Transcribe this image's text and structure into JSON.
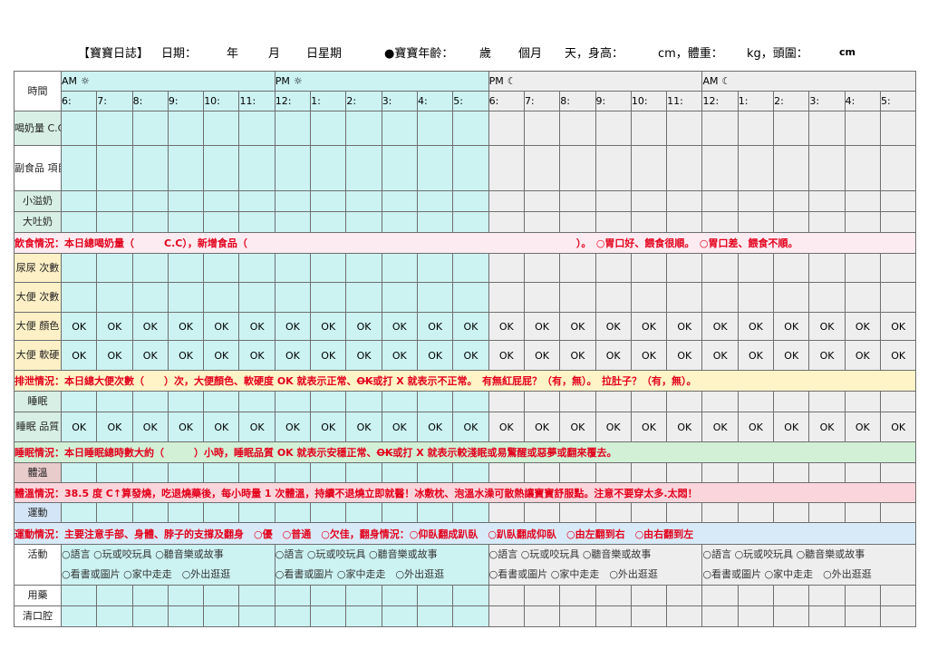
{
  "header": {
    "title": "【寶寶日誌】",
    "date_label": "日期：",
    "year": "年",
    "month": "月",
    "day_week": "日星期",
    "age_label": "●寶寶年齡：",
    "years": "歲",
    "months": "個月",
    "days_height": "天，身高：",
    "cm1": "cm，體重：",
    "kg": "kg，頭圍：",
    "cm2": "cm"
  },
  "time_label": "時間",
  "periods": [
    "AM",
    "PM",
    "PM",
    "AM"
  ],
  "hours": [
    "6:",
    "7:",
    "8:",
    "9:",
    "10:",
    "11:",
    "12:",
    "1:",
    "2:",
    "3:",
    "4:",
    "5:",
    "6:",
    "7:",
    "8:",
    "9:",
    "10:",
    "11:",
    "12:",
    "1:",
    "2:",
    "3:",
    "4:",
    "5:"
  ],
  "row_labels": {
    "milk": "喝奶量 C.C",
    "solid": "副食品 項目 C.C 量",
    "spit_small": "小溢奶",
    "spit_big": "大吐奶",
    "urine": "尿尿 次數",
    "stool_count": "大便 次數",
    "stool_color": "大便 顏色",
    "stool_soft": "大便 軟硬",
    "sleep": "睡眠",
    "sleep_quality": "睡眠 品質",
    "temp": "體溫",
    "exercise": "運動",
    "activity": "活動",
    "medicine": "用藥",
    "mouth": "清口腔"
  },
  "ok": "OK",
  "notes": {
    "diet": "飲食情況：本日總喝奶量（　　　C.C），新增食品（　　　　　　　　　　　　　　　　　　　　　　　　　　　　　　　　　）。　○胃口好、餵食很順。　○胃口差、餵食不順。",
    "stool_a": "排泄情況：本日總大便次數（　　）次，大便顏色、軟硬度 OK 就表示正常、",
    "stool_b": "OK",
    "stool_c": "或打 X 就表示不正常。　有無紅屁屁？（有，無）。　拉肚子？（有，無）。",
    "sleep_a": "睡眠情況：本日睡眠總時數大約（　　　）小時，睡眠品質 OK 就表示安穩正常、",
    "sleep_b": "OK",
    "sleep_c": "或打 X 就表示較淺眠或易驚醒或惡夢或翻來覆去。",
    "temp": "體溫情況：38.5 度 C↑算發燒，吃退燒藥後，每小時量 1 次體溫，持續不退燒立即就醫！冰敷枕、泡溫水澡可散熱讓寶寶舒服點。注意不要穿太多.太悶！",
    "exercise": "運動情況：主要注意手部、身體、脖子的支撐及翻身　○優　○普通　○欠佳，翻身情況：○仰臥翻成趴臥　○趴臥翻成仰臥　○由左翻到右　○由右翻到左"
  },
  "activity_line1": "○語言 ○玩或咬玩具 ○聽音樂或故事",
  "activity_line2": "○看書或圖片 ○家中走走　○外出逛逛",
  "colors": {
    "am": "#ccf2f2",
    "night": "#eeeeee",
    "note_text": "#e3001b"
  }
}
